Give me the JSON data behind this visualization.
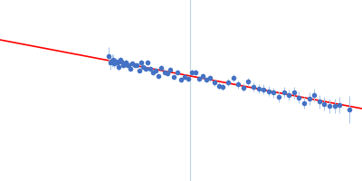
{
  "background_color": "#ffffff",
  "line_color": "#ff0000",
  "dot_color": "#4472c4",
  "errorbar_color": "#a8c4e8",
  "vline_color": "#b8d4e8",
  "figsize": [
    4.0,
    2.0
  ],
  "dpi": 100,
  "xlim": [
    0.0,
    1.0
  ],
  "ylim": [
    0.0,
    1.0
  ],
  "line_slope": -0.38,
  "line_intercept": 0.78,
  "vline_x": 0.525,
  "x_data": [
    0.3,
    0.305,
    0.31,
    0.312,
    0.316,
    0.32,
    0.324,
    0.328,
    0.332,
    0.336,
    0.34,
    0.344,
    0.348,
    0.352,
    0.356,
    0.36,
    0.366,
    0.372,
    0.378,
    0.384,
    0.39,
    0.396,
    0.402,
    0.408,
    0.415,
    0.422,
    0.43,
    0.438,
    0.446,
    0.454,
    0.462,
    0.47,
    0.48,
    0.49,
    0.5,
    0.51,
    0.52,
    0.53,
    0.54,
    0.55,
    0.56,
    0.57,
    0.58,
    0.592,
    0.604,
    0.616,
    0.63,
    0.644,
    0.658,
    0.672,
    0.686,
    0.7,
    0.714,
    0.728,
    0.742,
    0.756,
    0.77,
    0.784,
    0.798,
    0.812,
    0.826,
    0.84,
    0.854,
    0.868,
    0.882,
    0.896,
    0.91,
    0.924,
    0.938,
    0.965
  ],
  "y_noise": [
    0.05,
    0.04,
    0.035,
    0.03,
    0.025,
    0.022,
    0.02,
    0.018,
    0.017,
    0.016,
    0.015,
    0.015,
    0.014,
    0.014,
    0.013,
    0.013,
    0.013,
    0.012,
    0.012,
    0.012,
    0.013,
    0.013,
    0.013,
    0.013,
    0.013,
    0.013,
    0.013,
    0.013,
    0.013,
    0.013,
    0.013,
    0.013,
    0.013,
    0.013,
    0.014,
    0.014,
    0.015,
    0.015,
    0.015,
    0.016,
    0.016,
    0.016,
    0.017,
    0.018,
    0.018,
    0.019,
    0.02,
    0.021,
    0.022,
    0.023,
    0.024,
    0.025,
    0.026,
    0.027,
    0.027,
    0.028,
    0.029,
    0.03,
    0.031,
    0.032,
    0.033,
    0.034,
    0.035,
    0.036,
    0.037,
    0.038,
    0.039,
    0.04,
    0.045,
    0.075
  ],
  "dot_size": 4,
  "line_width": 1.2,
  "scatter_std": 0.015
}
